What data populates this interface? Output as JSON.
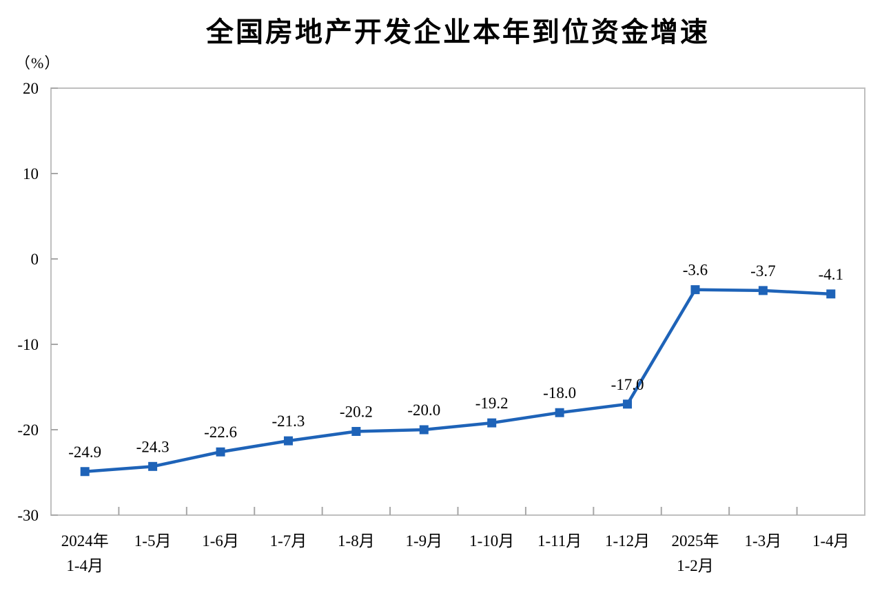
{
  "chart_data": {
    "type": "line",
    "title": "全国房地产开发企业本年到位资金增速",
    "unit_label": "（%）",
    "categories": [
      "2024年\n1-4月",
      "1-5月",
      "1-6月",
      "1-7月",
      "1-8月",
      "1-9月",
      "1-10月",
      "1-11月",
      "1-12月",
      "2025年\n1-2月",
      "1-3月",
      "1-4月"
    ],
    "values": [
      -24.9,
      -24.3,
      -22.6,
      -21.3,
      -20.2,
      -20.0,
      -19.2,
      -18.0,
      -17.0,
      -3.6,
      -3.7,
      -4.1
    ],
    "data_labels": [
      "-24.9",
      "-24.3",
      "-22.6",
      "-21.3",
      "-20.2",
      "-20.0",
      "-19.2",
      "-18.0",
      "-17.0",
      "-3.6",
      "-3.7",
      "-4.1"
    ],
    "ylim": [
      -30,
      20
    ],
    "yticks": [
      20,
      10,
      0,
      -10,
      -20,
      -30
    ],
    "grid": false,
    "legend_position": "none",
    "colors": {
      "line": "#1e63b8",
      "marker": "#1e63b8",
      "data_label": "#000000",
      "axis_frame": "#bfbfbf",
      "tick": "#a6a6a6",
      "text": "#000000",
      "background": "#ffffff"
    }
  }
}
